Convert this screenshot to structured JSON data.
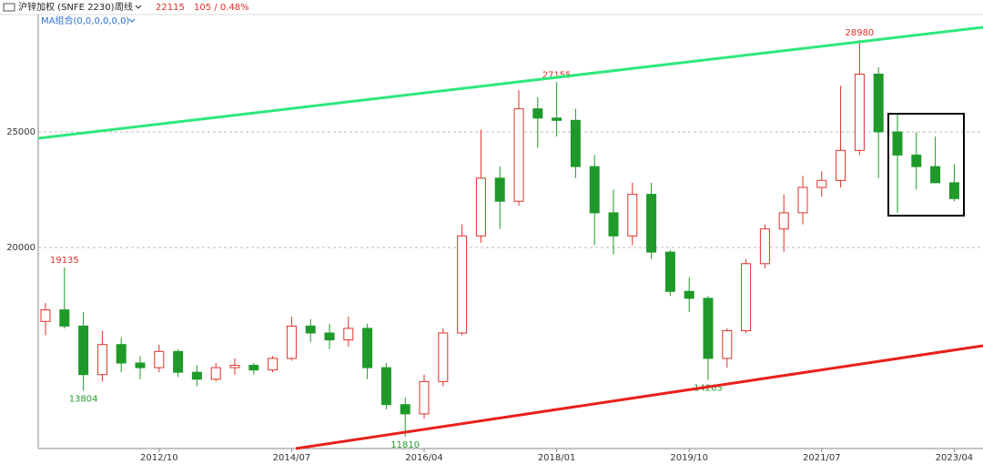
{
  "header": {
    "instrument": "沪锌加权 (SNFE 2230)",
    "period": "周线",
    "last_price": "22115",
    "change": "105 / 0.48%",
    "indicator": "MA组合(0,0,0,0,0,0)"
  },
  "chart_data": {
    "type": "candlestick",
    "categories": [
      null,
      null,
      null,
      null,
      null,
      null,
      "2012/10",
      null,
      null,
      null,
      null,
      null,
      null,
      "2014/07",
      null,
      null,
      null,
      null,
      null,
      null,
      "2016/04",
      null,
      null,
      null,
      null,
      null,
      null,
      "2018/01",
      null,
      null,
      null,
      null,
      null,
      null,
      "2019/10",
      null,
      null,
      null,
      null,
      null,
      null,
      "2021/07",
      null,
      null,
      null,
      null,
      null,
      null,
      "2023/04"
    ],
    "open": [
      16800,
      17300,
      16600,
      14500,
      15800,
      15000,
      14800,
      15500,
      14600,
      14300,
      14800,
      14900,
      14700,
      15200,
      16600,
      16300,
      16000,
      16500,
      14800,
      13200,
      12800,
      14200,
      16300,
      20500,
      23000,
      22000,
      26000,
      25600,
      25500,
      23500,
      21500,
      20500,
      22300,
      19800,
      18100,
      17800,
      15200,
      16400,
      19300,
      20800,
      21500,
      22600,
      22900,
      24200,
      27500,
      25000,
      24000,
      23500,
      22800
    ],
    "high": [
      17600,
      19135,
      17200,
      16400,
      16100,
      15300,
      15800,
      15600,
      14900,
      15000,
      15200,
      15000,
      15300,
      17000,
      16900,
      16700,
      17000,
      16700,
      15000,
      13500,
      14500,
      16500,
      21000,
      25100,
      23500,
      26800,
      26500,
      27155,
      26000,
      24000,
      22500,
      22800,
      22800,
      19900,
      18700,
      17900,
      16500,
      19500,
      21000,
      22300,
      23100,
      23300,
      27000,
      28980,
      27800,
      25800,
      25000,
      24800,
      23600
    ],
    "low": [
      16200,
      16500,
      13804,
      14200,
      14600,
      14300,
      14600,
      14400,
      14000,
      14200,
      14500,
      14500,
      14600,
      15100,
      15900,
      15600,
      15700,
      14300,
      13000,
      11810,
      12600,
      14000,
      16200,
      20200,
      20800,
      21800,
      24300,
      24800,
      23000,
      20100,
      19700,
      20100,
      19500,
      17900,
      17200,
      14265,
      14800,
      16300,
      19100,
      19800,
      21000,
      22200,
      22600,
      24000,
      23000,
      21500,
      22500,
      22800,
      22000
    ],
    "close": [
      17300,
      16600,
      14500,
      15800,
      15000,
      14800,
      15500,
      14600,
      14300,
      14800,
      14900,
      14700,
      15200,
      16600,
      16300,
      16000,
      16500,
      14800,
      13200,
      12800,
      14200,
      16300,
      20500,
      23000,
      22000,
      26000,
      25600,
      25500,
      23500,
      21500,
      20500,
      22300,
      19800,
      18100,
      17800,
      15200,
      16400,
      19300,
      20800,
      21500,
      22600,
      22900,
      24200,
      27500,
      25000,
      24000,
      23500,
      22800,
      22115
    ],
    "up_color": "#e0302a",
    "down_color": "#1f9a2a",
    "annotations": [
      {
        "value": 19135,
        "color": "#e0302a"
      },
      {
        "value": 13804,
        "color": "#1f9a2a"
      },
      {
        "value": 11810,
        "color": "#1f9a2a"
      },
      {
        "value": 27155,
        "color": "#e0302a"
      },
      {
        "value": 14265,
        "color": "#1f9a2a"
      },
      {
        "value": 28980,
        "color": "#e0302a"
      }
    ],
    "ylim": [
      11300,
      30000
    ],
    "yticks": [
      20000,
      25000
    ],
    "grid": true
  }
}
